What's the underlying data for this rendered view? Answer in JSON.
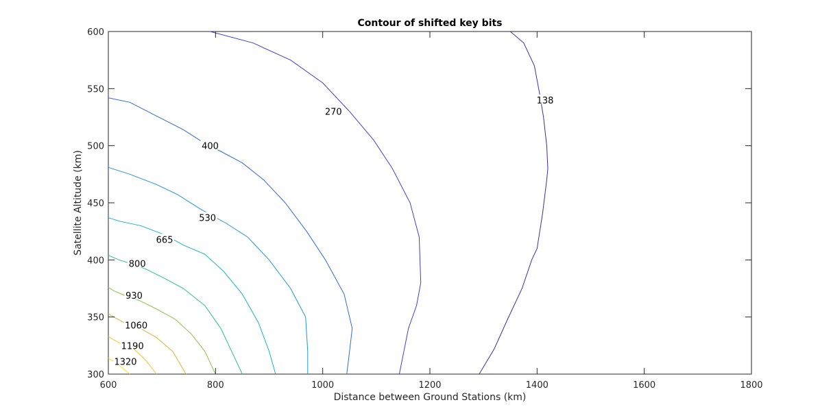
{
  "chart_data": {
    "type": "line",
    "title": "Contour of shifted key bits",
    "xlabel": "Distance between Ground Stations (km)",
    "ylabel": "Satellite Altitude (km)",
    "xlim": [
      600,
      1800
    ],
    "ylim": [
      300,
      600
    ],
    "xticks": [
      "600",
      "800",
      "1000",
      "1200",
      "1400",
      "1600",
      "1800"
    ],
    "yticks": [
      "300",
      "350",
      "400",
      "450",
      "500",
      "550",
      "600"
    ],
    "xtick_values": [
      600,
      800,
      1000,
      1200,
      1400,
      1600,
      1800
    ],
    "ytick_values": [
      300,
      350,
      400,
      450,
      500,
      550,
      600
    ],
    "grid": false,
    "series": [
      {
        "name": "138",
        "color": "#3f2ba6",
        "label_at": [
          1415,
          540
        ],
        "points": [
          [
            1292,
            300
          ],
          [
            1320,
            322
          ],
          [
            1345,
            348
          ],
          [
            1372,
            375
          ],
          [
            1390,
            400
          ],
          [
            1400,
            410
          ],
          [
            1410,
            440
          ],
          [
            1418,
            470
          ],
          [
            1420,
            480
          ],
          [
            1418,
            500
          ],
          [
            1412,
            525
          ],
          [
            1405,
            545
          ],
          [
            1395,
            570
          ],
          [
            1375,
            590
          ],
          [
            1350,
            600
          ]
        ]
      },
      {
        "name": "270",
        "color": "#3d40c8",
        "label_at": [
          1020,
          530
        ],
        "points": [
          [
            1143,
            300
          ],
          [
            1160,
            340
          ],
          [
            1175,
            360
          ],
          [
            1183,
            380
          ],
          [
            1180,
            420
          ],
          [
            1163,
            450
          ],
          [
            1130,
            480
          ],
          [
            1095,
            505
          ],
          [
            1050,
            530
          ],
          [
            1000,
            555
          ],
          [
            940,
            575
          ],
          [
            870,
            590
          ],
          [
            790,
            600
          ]
        ]
      },
      {
        "name": "400",
        "color": "#2e68d8",
        "label_at": [
          790,
          500
        ],
        "points": [
          [
            1045,
            300
          ],
          [
            1050,
            320
          ],
          [
            1055,
            340
          ],
          [
            1040,
            370
          ],
          [
            1005,
            400
          ],
          [
            970,
            425
          ],
          [
            930,
            450
          ],
          [
            890,
            470
          ],
          [
            850,
            485
          ],
          [
            810,
            495
          ],
          [
            780,
            502
          ],
          [
            740,
            514
          ],
          [
            690,
            526
          ],
          [
            640,
            538
          ],
          [
            600,
            542
          ]
        ]
      },
      {
        "name": "530",
        "color": "#1e94dc",
        "label_at": [
          785,
          437
        ],
        "points": [
          [
            972,
            300
          ],
          [
            972,
            320
          ],
          [
            968,
            350
          ],
          [
            940,
            375
          ],
          [
            900,
            400
          ],
          [
            860,
            420
          ],
          [
            820,
            432
          ],
          [
            770,
            445
          ],
          [
            730,
            457
          ],
          [
            690,
            466
          ],
          [
            640,
            475
          ],
          [
            600,
            481
          ]
        ]
      },
      {
        "name": "665",
        "color": "#16b3c7",
        "label_at": [
          705,
          418
        ],
        "points": [
          [
            912,
            300
          ],
          [
            900,
            320
          ],
          [
            880,
            345
          ],
          [
            850,
            370
          ],
          [
            815,
            390
          ],
          [
            780,
            405
          ],
          [
            740,
            413
          ],
          [
            705,
            422
          ],
          [
            660,
            430
          ],
          [
            620,
            434
          ],
          [
            600,
            437
          ]
        ]
      },
      {
        "name": "800",
        "color": "#28c08f",
        "label_at": [
          654,
          397
        ],
        "points": [
          [
            850,
            300
          ],
          [
            830,
            320
          ],
          [
            810,
            340
          ],
          [
            780,
            360
          ],
          [
            740,
            375
          ],
          [
            700,
            385
          ],
          [
            670,
            392
          ],
          [
            640,
            397
          ],
          [
            620,
            400
          ],
          [
            600,
            404
          ]
        ]
      },
      {
        "name": "930",
        "color": "#86c647",
        "label_at": [
          648,
          369
        ],
        "points": [
          [
            800,
            300
          ],
          [
            780,
            320
          ],
          [
            755,
            335
          ],
          [
            725,
            348
          ],
          [
            690,
            357
          ],
          [
            660,
            364
          ],
          [
            630,
            369
          ],
          [
            610,
            373
          ],
          [
            600,
            376
          ]
        ]
      },
      {
        "name": "1060",
        "color": "#d7b634",
        "label_at": [
          652,
          343
        ],
        "points": [
          [
            745,
            300
          ],
          [
            720,
            320
          ],
          [
            690,
            332
          ],
          [
            660,
            340
          ],
          [
            630,
            345
          ],
          [
            610,
            350
          ],
          [
            600,
            353
          ]
        ]
      },
      {
        "name": "1190",
        "color": "#f4c127",
        "label_at": [
          645,
          325
        ],
        "points": [
          [
            690,
            300
          ],
          [
            670,
            312
          ],
          [
            650,
            321
          ],
          [
            630,
            325
          ],
          [
            610,
            330
          ],
          [
            600,
            333
          ]
        ]
      },
      {
        "name": "1320",
        "color": "#fadd1e",
        "label_at": [
          632,
          311
        ],
        "points": [
          [
            640,
            300
          ],
          [
            625,
            306
          ],
          [
            610,
            311
          ],
          [
            600,
            314
          ]
        ]
      }
    ]
  }
}
